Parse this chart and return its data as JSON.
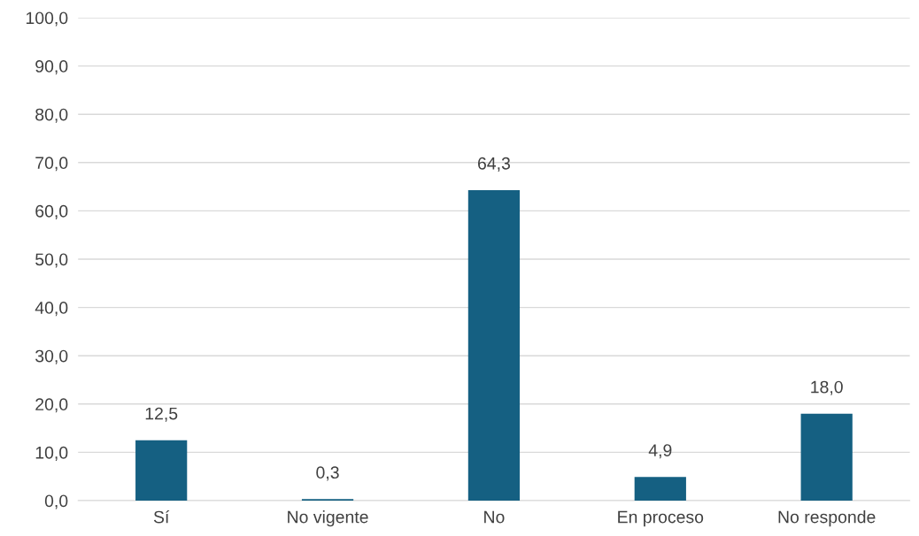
{
  "chart_data": {
    "type": "bar",
    "categories": [
      "Sí",
      "No vigente",
      "No",
      "En proceso",
      "No responde"
    ],
    "values": [
      12.5,
      0.3,
      64.3,
      4.9,
      18.0
    ],
    "value_labels": [
      "12,5",
      "0,3",
      "64,3",
      "4,9",
      "18,0"
    ],
    "color": "#156082",
    "ylim": [
      0,
      100
    ],
    "yticks": [
      {
        "value": 0,
        "label": "0,0"
      },
      {
        "value": 10,
        "label": "10,0"
      },
      {
        "value": 20,
        "label": "20,0"
      },
      {
        "value": 30,
        "label": "30,0"
      },
      {
        "value": 40,
        "label": "40,0"
      },
      {
        "value": 50,
        "label": "50,0"
      },
      {
        "value": 60,
        "label": "60,0"
      },
      {
        "value": 70,
        "label": "70,0"
      },
      {
        "value": 80,
        "label": "80,0"
      },
      {
        "value": 90,
        "label": "90,0"
      },
      {
        "value": 100,
        "label": "100,0"
      }
    ],
    "grid": "y",
    "legend": false
  }
}
